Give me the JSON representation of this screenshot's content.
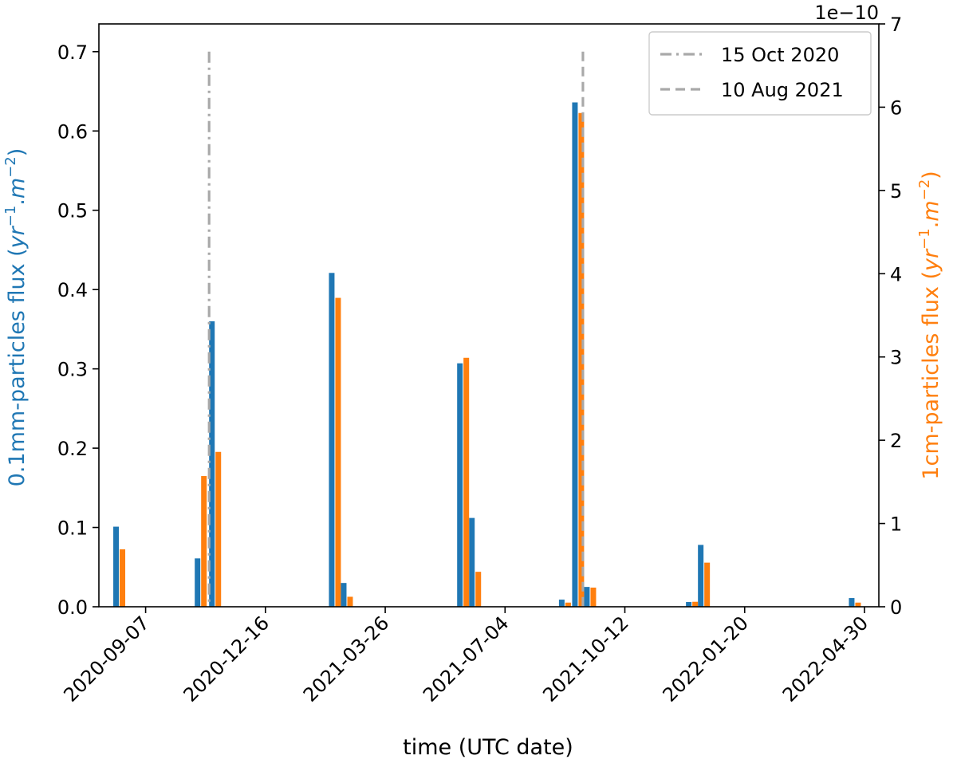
{
  "chart_data": {
    "type": "bar",
    "xlabel": "time (UTC date)",
    "ylabel_left": {
      "text": "0.1mm-particles flux (",
      "math": "yr",
      "sup1": "−1",
      "dot": ".",
      "m": "m",
      "sup2": "−2",
      "close": ")"
    },
    "ylabel_right": {
      "text": "1cm-particles flux (",
      "math": "yr",
      "sup1": "−1",
      "dot": ".",
      "m": "m",
      "sup2": "−2",
      "close": ")"
    },
    "right_offset_text": "1e−10",
    "x_tick_labels": [
      "2020-09-07",
      "2020-12-16",
      "2021-03-26",
      "2021-07-04",
      "2021-10-12",
      "2022-01-20",
      "2022-04-30"
    ],
    "xlim": [
      "2020-07-30",
      "2022-05-12"
    ],
    "ylim_left": [
      0,
      0.735
    ],
    "ylim_right": [
      0,
      7
    ],
    "yticks_left": [
      "0.0",
      "0.1",
      "0.2",
      "0.3",
      "0.4",
      "0.5",
      "0.6",
      "0.7"
    ],
    "yticks_right": [
      "0",
      "1",
      "2",
      "3",
      "4",
      "5",
      "6",
      "7"
    ],
    "series": [
      {
        "name": "0.1mm-particles flux",
        "axis": "left",
        "color": "#1f77b4",
        "points": [
          {
            "date": "2020-08-16",
            "value": 0.101
          },
          {
            "date": "2020-10-23",
            "value": 0.061
          },
          {
            "date": "2020-11-04",
            "value": 0.36
          },
          {
            "date": "2021-02-12",
            "value": 0.421
          },
          {
            "date": "2021-02-22",
            "value": 0.03
          },
          {
            "date": "2021-05-30",
            "value": 0.307
          },
          {
            "date": "2021-06-09",
            "value": 0.112
          },
          {
            "date": "2021-08-23",
            "value": 0.009
          },
          {
            "date": "2021-09-03",
            "value": 0.636
          },
          {
            "date": "2021-09-13",
            "value": 0.025
          },
          {
            "date": "2021-12-07",
            "value": 0.006
          },
          {
            "date": "2021-12-17",
            "value": 0.078
          },
          {
            "date": "2022-04-22",
            "value": 0.011
          }
        ]
      },
      {
        "name": "1cm-particles flux",
        "axis": "right",
        "color": "#ff7f0e",
        "points": [
          {
            "date": "2020-08-16",
            "value": 0.69
          },
          {
            "date": "2020-10-23",
            "value": 1.57
          },
          {
            "date": "2020-11-04",
            "value": 1.86
          },
          {
            "date": "2021-02-12",
            "value": 3.71
          },
          {
            "date": "2021-02-22",
            "value": 0.12
          },
          {
            "date": "2021-05-30",
            "value": 2.99
          },
          {
            "date": "2021-06-09",
            "value": 0.42
          },
          {
            "date": "2021-08-23",
            "value": 0.05
          },
          {
            "date": "2021-09-03",
            "value": 5.93
          },
          {
            "date": "2021-09-13",
            "value": 0.23
          },
          {
            "date": "2021-12-07",
            "value": 0.06
          },
          {
            "date": "2021-12-17",
            "value": 0.53
          },
          {
            "date": "2022-04-22",
            "value": 0.05
          }
        ]
      }
    ],
    "vlines": [
      {
        "date": "2020-10-30",
        "label": "15 Oct 2020",
        "style": "dashdot",
        "color": "#a9a9a9",
        "ytop": 0.7
      },
      {
        "date": "2021-09-07",
        "label": "10 Aug 2021",
        "style": "dashed",
        "color": "#a9a9a9",
        "ytop": 0.7
      }
    ],
    "legend_position": "top-right",
    "grid": false
  }
}
